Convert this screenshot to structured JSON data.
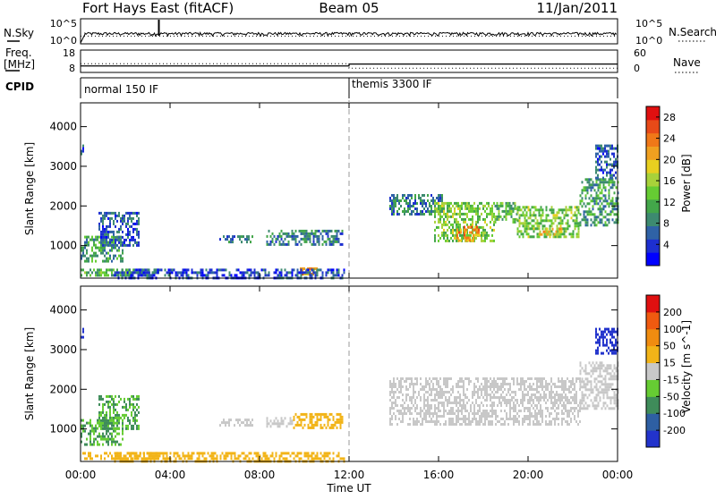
{
  "header": {
    "station": "Fort Hays East (fitACF)",
    "beam": "Beam 05",
    "date": "11/Jan/2011"
  },
  "strips": {
    "nsky_label": "N.Sky",
    "nsky_ticks": [
      "10^5",
      "10^0"
    ],
    "nsearch_label": "N.Search",
    "nsearch_ticks": [
      "10^5",
      "10^0"
    ],
    "freq_label": "Freq.",
    "freq_unit": "[MHz]",
    "freq_ticks": [
      "18",
      "8"
    ],
    "nave_label": "Nave",
    "nave_ticks": [
      "60",
      "0"
    ],
    "cpid_label": "CPID",
    "cpid_modes": [
      {
        "name": "normal 150 IF",
        "start_hour": 0,
        "end_hour": 12
      },
      {
        "name": "themis 3300 IF",
        "start_hour": 12,
        "end_hour": 24
      }
    ]
  },
  "axes": {
    "ylabel": "Slant Range [km]",
    "xlabel": "Time UT",
    "x_ticks": [
      "00:00",
      "04:00",
      "08:00",
      "12:00",
      "16:00",
      "20:00",
      "00:00"
    ],
    "x_range_hours": [
      0,
      24
    ],
    "y_ticks": [
      "1000",
      "2000",
      "3000",
      "4000"
    ],
    "y_range_km": [
      180,
      4600
    ]
  },
  "colorbars": {
    "power": {
      "label": "Power [dB]",
      "ticks": [
        "4",
        "8",
        "12",
        "16",
        "20",
        "24",
        "28"
      ],
      "range": [
        0,
        30
      ],
      "colors": [
        "#0000ff",
        "#1d2fd0",
        "#2f62a6",
        "#3d8a70",
        "#43a64a",
        "#66cc33",
        "#a8d23a",
        "#e8d020",
        "#f0a020",
        "#f07818",
        "#e84a18",
        "#e01010"
      ]
    },
    "velocity": {
      "label": "Velocity [m s^-1]",
      "ticks": [
        "200",
        "100",
        "50",
        "15",
        "-15",
        "-50",
        "-100",
        "-200"
      ],
      "colors": [
        "#2233cc",
        "#2e5fa3",
        "#3f8c5a",
        "#66cc33",
        "#c8c8c8",
        "#f2b418",
        "#f08c10",
        "#f05a10",
        "#e01010"
      ]
    }
  },
  "chart_data": [
    {
      "type": "line",
      "title": "N.Sky / N.Search",
      "scale": "log",
      "ylim": [
        1,
        100000
      ],
      "series": [
        {
          "name": "N.Sky",
          "x": [
            0,
            0.2,
            12,
            24
          ],
          "y": [
            1,
            80,
            80,
            80
          ]
        },
        {
          "name": "N.Search",
          "x": [
            0,
            24
          ],
          "y": [
            30,
            30
          ]
        }
      ]
    },
    {
      "type": "line",
      "title": "Freq. / Nave",
      "series": [
        {
          "name": "Freq. [MHz]",
          "x": [
            0,
            12,
            12,
            24
          ],
          "y": [
            10.5,
            10.5,
            11.5,
            11.5
          ]
        },
        {
          "name": "Nave",
          "x": [
            0,
            12,
            12,
            24
          ],
          "y": [
            22,
            22,
            8,
            8
          ]
        }
      ]
    },
    {
      "type": "heatmap",
      "title": "Power [dB]",
      "xlabel": "Time UT",
      "ylabel": "Slant Range [km]",
      "xlim": [
        0,
        24
      ],
      "ylim": [
        180,
        4600
      ],
      "regions": [
        {
          "t_start": 0.0,
          "t_end": 0.15,
          "r_start": 3300,
          "r_end": 3550,
          "power_db": 6
        },
        {
          "t_start": 0.0,
          "t_end": 1.9,
          "r_start": 600,
          "r_end": 1250,
          "power_db": 10
        },
        {
          "t_start": 0.8,
          "t_end": 2.6,
          "r_start": 1000,
          "r_end": 1850,
          "power_db": 6
        },
        {
          "t_start": 0.0,
          "t_end": 3.5,
          "r_start": 230,
          "r_end": 420,
          "power_db": 12
        },
        {
          "t_start": 6.2,
          "t_end": 7.7,
          "r_start": 1100,
          "r_end": 1260,
          "power_db": 7
        },
        {
          "t_start": 8.3,
          "t_end": 11.7,
          "r_start": 1000,
          "r_end": 1400,
          "power_db": 8
        },
        {
          "t_start": 9.8,
          "t_end": 10.6,
          "r_start": 250,
          "r_end": 450,
          "power_db": 22
        },
        {
          "t_start": 13.8,
          "t_end": 16.2,
          "r_start": 1800,
          "r_end": 2300,
          "power_db": 8
        },
        {
          "t_start": 15.8,
          "t_end": 18.5,
          "r_start": 1100,
          "r_end": 2100,
          "power_db": 14
        },
        {
          "t_start": 16.8,
          "t_end": 17.8,
          "r_start": 1150,
          "r_end": 1500,
          "power_db": 22
        },
        {
          "t_start": 18.5,
          "t_end": 19.5,
          "r_start": 1600,
          "r_end": 2100,
          "power_db": 12
        },
        {
          "t_start": 19.5,
          "t_end": 22.3,
          "r_start": 1200,
          "r_end": 2000,
          "power_db": 14
        },
        {
          "t_start": 20.5,
          "t_end": 21.5,
          "r_start": 1250,
          "r_end": 1450,
          "power_db": 20
        },
        {
          "t_start": 22.3,
          "t_end": 24.0,
          "r_start": 1500,
          "r_end": 2700,
          "power_db": 10
        },
        {
          "t_start": 23.0,
          "t_end": 24.0,
          "r_start": 2700,
          "r_end": 3550,
          "power_db": 6
        },
        {
          "t_start": 1.5,
          "t_end": 11.8,
          "r_start": 200,
          "r_end": 420,
          "power_db": 5
        }
      ]
    },
    {
      "type": "heatmap",
      "title": "Velocity [m s^-1]",
      "xlabel": "Time UT",
      "ylabel": "Slant Range [km]",
      "xlim": [
        0,
        24
      ],
      "ylim": [
        180,
        4600
      ],
      "regions": [
        {
          "t_start": 0.0,
          "t_end": 0.15,
          "r_start": 3300,
          "r_end": 3550,
          "velocity": 200
        },
        {
          "t_start": 0.0,
          "t_end": 1.9,
          "r_start": 600,
          "r_end": 1250,
          "velocity": 30
        },
        {
          "t_start": 0.8,
          "t_end": 2.6,
          "r_start": 1000,
          "r_end": 1850,
          "velocity": 30
        },
        {
          "t_start": 0.0,
          "t_end": 3.5,
          "r_start": 230,
          "r_end": 420,
          "velocity": -40
        },
        {
          "t_start": 6.2,
          "t_end": 7.7,
          "r_start": 1100,
          "r_end": 1260,
          "velocity": 0
        },
        {
          "t_start": 8.3,
          "t_end": 9.5,
          "r_start": 1050,
          "r_end": 1300,
          "velocity": 0
        },
        {
          "t_start": 9.5,
          "t_end": 11.7,
          "r_start": 1000,
          "r_end": 1400,
          "velocity": -40
        },
        {
          "t_start": 1.5,
          "t_end": 11.8,
          "r_start": 200,
          "r_end": 420,
          "velocity": -40
        },
        {
          "t_start": 13.8,
          "t_end": 22.3,
          "r_start": 1100,
          "r_end": 2300,
          "velocity": 0
        },
        {
          "t_start": 22.3,
          "t_end": 24.0,
          "r_start": 1500,
          "r_end": 2700,
          "velocity": 0
        },
        {
          "t_start": 23.0,
          "t_end": 24.0,
          "r_start": 2900,
          "r_end": 3550,
          "velocity": 200
        }
      ]
    }
  ]
}
